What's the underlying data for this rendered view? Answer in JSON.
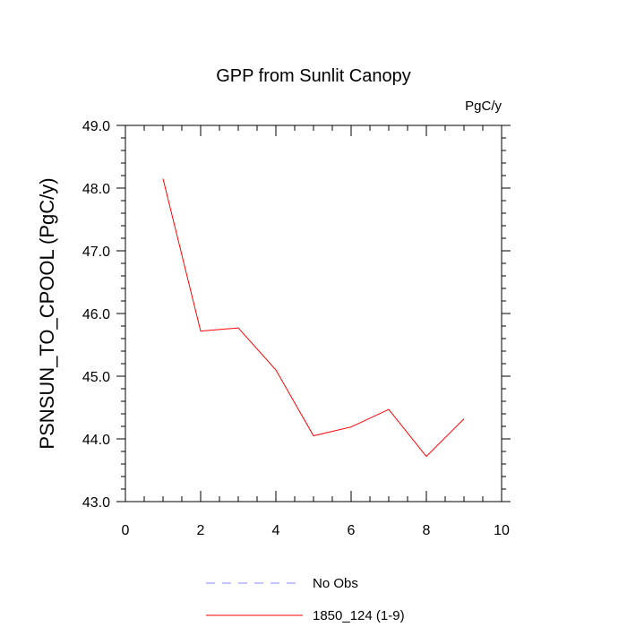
{
  "chart_data": {
    "type": "line",
    "title": "GPP from Sunlit Canopy",
    "units_label": "PgC/y",
    "xlabel": "",
    "ylabel": "PSNSUN_TO_CPOOL  (PgC/y)",
    "xlim": [
      0,
      10
    ],
    "ylim": [
      43.0,
      49.0
    ],
    "xticks": [
      0,
      2,
      4,
      6,
      8,
      10
    ],
    "xtick_labels": [
      "0",
      "2",
      "4",
      "6",
      "8",
      "10"
    ],
    "yticks": [
      43.0,
      44.0,
      45.0,
      46.0,
      47.0,
      48.0,
      49.0
    ],
    "ytick_labels": [
      "43.0",
      "44.0",
      "45.0",
      "46.0",
      "47.0",
      "48.0",
      "49.0"
    ],
    "grid": false,
    "legend_position": "bottom",
    "series": [
      {
        "name": "1850_124 (1-9)",
        "color": "#ff0000",
        "style": "solid",
        "x": [
          1,
          2,
          3,
          4,
          5,
          6,
          7,
          8,
          9
        ],
        "y": [
          48.15,
          45.72,
          45.77,
          45.1,
          44.05,
          44.19,
          44.47,
          43.72,
          44.32
        ]
      }
    ],
    "legend": [
      {
        "label": "No Obs",
        "color": "#8888ff",
        "style": "dashed"
      },
      {
        "label": "1850_124 (1-9)",
        "color": "#ff0000",
        "style": "solid"
      }
    ]
  }
}
